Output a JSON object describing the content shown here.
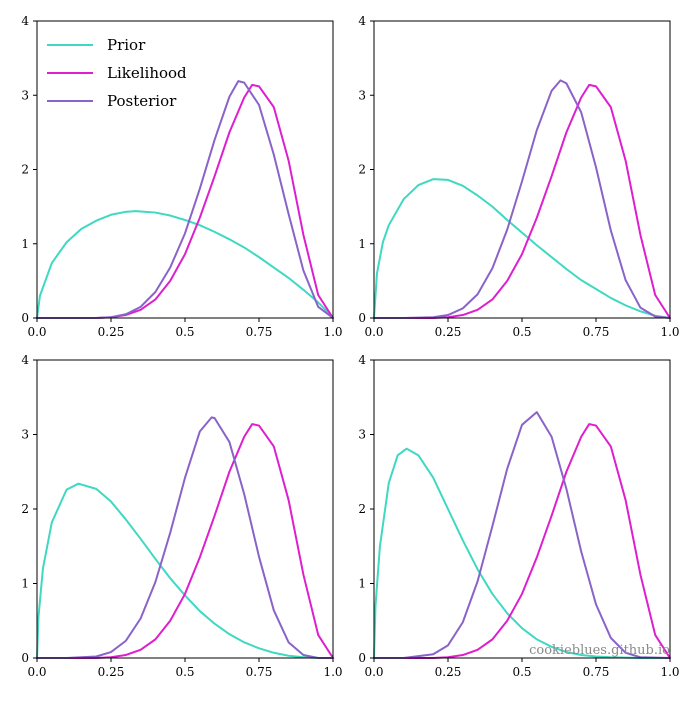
{
  "colors": {
    "prior": "#3fd8c2",
    "likelihood": "#dd1fcf",
    "posterior": "#8a63c9"
  },
  "legend": {
    "entries": [
      "Prior",
      "Likelihood",
      "Posterior"
    ],
    "placement": "upper-left of top-left panel"
  },
  "watermark": "cookieblues.github.io",
  "chart_data": [
    {
      "type": "line",
      "xlim": [
        0,
        1
      ],
      "ylim": [
        0,
        4
      ],
      "xticks": [
        "0.0",
        "0.25",
        "0.5",
        "0.75",
        "1.0"
      ],
      "yticks": [
        "0",
        "1",
        "2",
        "3",
        "4"
      ],
      "grid": false,
      "series": [
        {
          "name": "Prior",
          "color_key": "prior",
          "x": [
            0.0,
            0.01,
            0.05,
            0.1,
            0.15,
            0.2,
            0.25,
            0.3,
            0.333,
            0.4,
            0.45,
            0.5,
            0.55,
            0.6,
            0.65,
            0.7,
            0.75,
            0.8,
            0.85,
            0.9,
            0.95,
            0.99,
            1.0
          ],
          "y": [
            0.0,
            0.3,
            0.74,
            1.02,
            1.2,
            1.31,
            1.39,
            1.43,
            1.44,
            1.42,
            1.38,
            1.32,
            1.25,
            1.16,
            1.06,
            0.95,
            0.82,
            0.68,
            0.54,
            0.38,
            0.21,
            0.05,
            0.0
          ]
        },
        {
          "name": "Likelihood",
          "color_key": "likelihood",
          "x": [
            0.0,
            0.1,
            0.2,
            0.25,
            0.3,
            0.35,
            0.4,
            0.45,
            0.5,
            0.55,
            0.6,
            0.65,
            0.7,
            0.727,
            0.75,
            0.8,
            0.85,
            0.9,
            0.95,
            1.0
          ],
          "y": [
            0.0,
            0.0,
            0.0,
            0.01,
            0.04,
            0.11,
            0.25,
            0.5,
            0.86,
            1.35,
            1.91,
            2.5,
            2.97,
            3.14,
            3.12,
            2.84,
            2.12,
            1.12,
            0.31,
            0.0
          ]
        },
        {
          "name": "Posterior",
          "color_key": "posterior",
          "x": [
            0.0,
            0.1,
            0.2,
            0.25,
            0.3,
            0.35,
            0.4,
            0.45,
            0.5,
            0.55,
            0.6,
            0.65,
            0.68,
            0.7,
            0.75,
            0.8,
            0.85,
            0.9,
            0.95,
            1.0
          ],
          "y": [
            0.0,
            0.0,
            0.0,
            0.01,
            0.05,
            0.15,
            0.35,
            0.68,
            1.14,
            1.74,
            2.4,
            2.98,
            3.19,
            3.17,
            2.87,
            2.2,
            1.4,
            0.64,
            0.15,
            0.0
          ]
        }
      ]
    },
    {
      "type": "line",
      "xlim": [
        0,
        1
      ],
      "ylim": [
        0,
        4
      ],
      "xticks": [
        "0.0",
        "0.25",
        "0.5",
        "0.75",
        "1.0"
      ],
      "yticks": [
        "0",
        "1",
        "2",
        "3",
        "4"
      ],
      "grid": false,
      "series": [
        {
          "name": "Prior",
          "color_key": "prior",
          "x": [
            0.0,
            0.01,
            0.03,
            0.05,
            0.1,
            0.15,
            0.2,
            0.25,
            0.3,
            0.35,
            0.4,
            0.45,
            0.5,
            0.55,
            0.6,
            0.65,
            0.7,
            0.75,
            0.8,
            0.85,
            0.9,
            0.95,
            1.0
          ],
          "y": [
            0.0,
            0.6,
            1.02,
            1.25,
            1.6,
            1.79,
            1.87,
            1.86,
            1.78,
            1.65,
            1.5,
            1.32,
            1.15,
            0.98,
            0.82,
            0.66,
            0.51,
            0.39,
            0.27,
            0.17,
            0.09,
            0.03,
            0.0
          ]
        },
        {
          "name": "Likelihood",
          "color_key": "likelihood",
          "x": [
            0.0,
            0.1,
            0.2,
            0.25,
            0.3,
            0.35,
            0.4,
            0.45,
            0.5,
            0.55,
            0.6,
            0.65,
            0.7,
            0.727,
            0.75,
            0.8,
            0.85,
            0.9,
            0.95,
            1.0
          ],
          "y": [
            0.0,
            0.0,
            0.0,
            0.01,
            0.04,
            0.11,
            0.25,
            0.5,
            0.86,
            1.35,
            1.91,
            2.5,
            2.97,
            3.14,
            3.12,
            2.84,
            2.12,
            1.12,
            0.31,
            0.0
          ]
        },
        {
          "name": "Posterior",
          "color_key": "posterior",
          "x": [
            0.0,
            0.1,
            0.2,
            0.25,
            0.3,
            0.35,
            0.4,
            0.45,
            0.5,
            0.55,
            0.6,
            0.63,
            0.65,
            0.7,
            0.75,
            0.8,
            0.85,
            0.9,
            0.95,
            1.0
          ],
          "y": [
            0.0,
            0.0,
            0.01,
            0.04,
            0.13,
            0.32,
            0.67,
            1.19,
            1.84,
            2.53,
            3.06,
            3.2,
            3.16,
            2.77,
            2.03,
            1.18,
            0.51,
            0.14,
            0.02,
            0.0
          ]
        }
      ]
    },
    {
      "type": "line",
      "xlim": [
        0,
        1
      ],
      "ylim": [
        0,
        4
      ],
      "xticks": [
        "0.0",
        "0.25",
        "0.5",
        "0.75",
        "1.0"
      ],
      "yticks": [
        "0",
        "1",
        "2",
        "3",
        "4"
      ],
      "grid": false,
      "series": [
        {
          "name": "Prior",
          "color_key": "prior",
          "x": [
            0.0,
            0.005,
            0.02,
            0.05,
            0.1,
            0.14,
            0.2,
            0.25,
            0.3,
            0.35,
            0.4,
            0.45,
            0.5,
            0.55,
            0.6,
            0.65,
            0.7,
            0.75,
            0.8,
            0.85,
            0.9,
            0.95,
            1.0
          ],
          "y": [
            0.0,
            0.55,
            1.2,
            1.82,
            2.26,
            2.34,
            2.27,
            2.1,
            1.86,
            1.6,
            1.33,
            1.07,
            0.84,
            0.63,
            0.46,
            0.32,
            0.21,
            0.13,
            0.07,
            0.03,
            0.01,
            0.0,
            0.0
          ]
        },
        {
          "name": "Likelihood",
          "color_key": "likelihood",
          "x": [
            0.0,
            0.1,
            0.2,
            0.25,
            0.3,
            0.35,
            0.4,
            0.45,
            0.5,
            0.55,
            0.6,
            0.65,
            0.7,
            0.727,
            0.75,
            0.8,
            0.85,
            0.9,
            0.95,
            1.0
          ],
          "y": [
            0.0,
            0.0,
            0.0,
            0.01,
            0.04,
            0.11,
            0.25,
            0.5,
            0.86,
            1.35,
            1.91,
            2.5,
            2.97,
            3.14,
            3.12,
            2.84,
            2.12,
            1.12,
            0.31,
            0.0
          ]
        },
        {
          "name": "Posterior",
          "color_key": "posterior",
          "x": [
            0.0,
            0.1,
            0.2,
            0.25,
            0.3,
            0.35,
            0.4,
            0.45,
            0.5,
            0.55,
            0.59,
            0.6,
            0.65,
            0.7,
            0.75,
            0.8,
            0.85,
            0.9,
            0.95,
            1.0
          ],
          "y": [
            0.0,
            0.0,
            0.02,
            0.08,
            0.23,
            0.53,
            1.02,
            1.68,
            2.42,
            3.04,
            3.23,
            3.22,
            2.9,
            2.2,
            1.36,
            0.64,
            0.21,
            0.04,
            0.0,
            0.0
          ]
        }
      ]
    },
    {
      "type": "line",
      "xlim": [
        0,
        1
      ],
      "ylim": [
        0,
        4
      ],
      "xticks": [
        "0.0",
        "0.25",
        "0.5",
        "0.75",
        "1.0"
      ],
      "yticks": [
        "0",
        "1",
        "2",
        "3",
        "4"
      ],
      "grid": false,
      "series": [
        {
          "name": "Prior",
          "color_key": "prior",
          "x": [
            0.0,
            0.005,
            0.02,
            0.05,
            0.08,
            0.11,
            0.15,
            0.2,
            0.25,
            0.3,
            0.35,
            0.4,
            0.45,
            0.5,
            0.55,
            0.6,
            0.65,
            0.7,
            0.75,
            0.8,
            0.9,
            1.0
          ],
          "y": [
            0.0,
            0.7,
            1.5,
            2.35,
            2.72,
            2.81,
            2.72,
            2.42,
            2.0,
            1.58,
            1.19,
            0.86,
            0.6,
            0.4,
            0.25,
            0.15,
            0.08,
            0.04,
            0.02,
            0.01,
            0.0,
            0.0
          ]
        },
        {
          "name": "Likelihood",
          "color_key": "likelihood",
          "x": [
            0.0,
            0.1,
            0.2,
            0.25,
            0.3,
            0.35,
            0.4,
            0.45,
            0.5,
            0.55,
            0.6,
            0.65,
            0.7,
            0.727,
            0.75,
            0.8,
            0.85,
            0.9,
            0.95,
            1.0
          ],
          "y": [
            0.0,
            0.0,
            0.0,
            0.01,
            0.04,
            0.11,
            0.25,
            0.5,
            0.86,
            1.35,
            1.91,
            2.5,
            2.97,
            3.14,
            3.12,
            2.84,
            2.12,
            1.12,
            0.31,
            0.0
          ]
        },
        {
          "name": "Posterior",
          "color_key": "posterior",
          "x": [
            0.0,
            0.1,
            0.2,
            0.25,
            0.3,
            0.35,
            0.4,
            0.45,
            0.5,
            0.55,
            0.6,
            0.65,
            0.7,
            0.75,
            0.8,
            0.85,
            0.9,
            1.0
          ],
          "y": [
            0.0,
            0.0,
            0.05,
            0.17,
            0.48,
            1.03,
            1.77,
            2.54,
            3.13,
            3.3,
            2.97,
            2.27,
            1.43,
            0.72,
            0.27,
            0.07,
            0.01,
            0.0
          ]
        }
      ]
    }
  ]
}
